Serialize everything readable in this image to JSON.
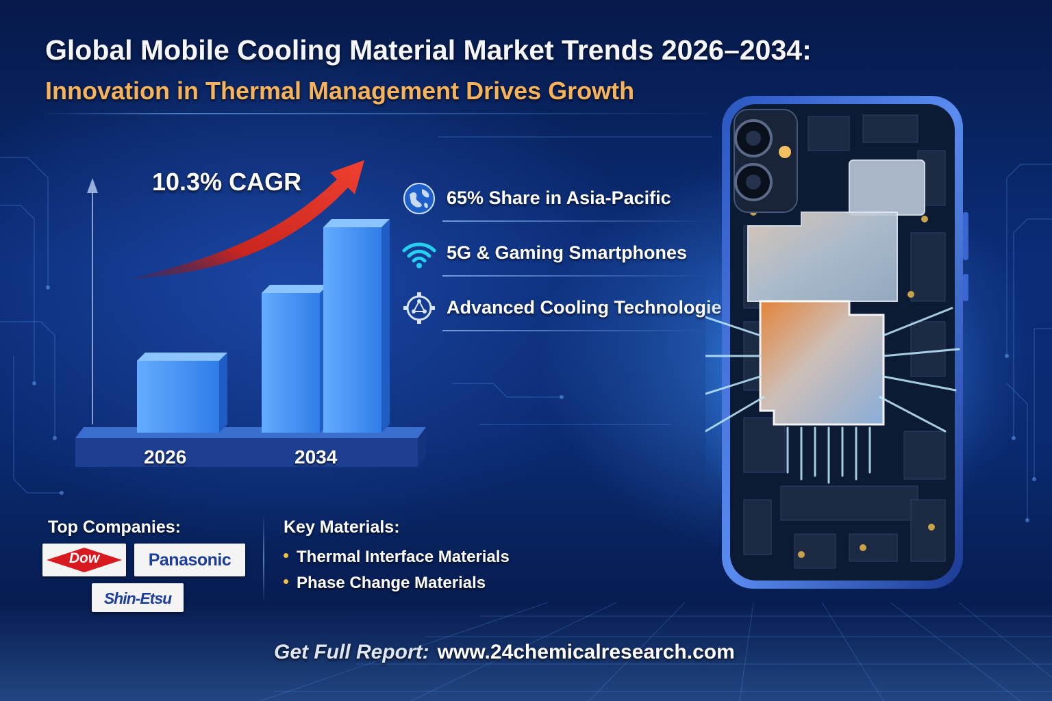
{
  "header": {
    "title": "Global Mobile Cooling Material Market Trends 2026–2034:",
    "subtitle": "Innovation in Thermal Management Drives Growth"
  },
  "chart": {
    "cagr_label": "10.3% CAGR",
    "year_labels": [
      "2026",
      "2034"
    ]
  },
  "chart_data": {
    "type": "bar",
    "title": "",
    "xlabel": "",
    "ylabel": "",
    "categories": [
      "2026",
      "",
      "2034"
    ],
    "values": [
      35,
      68,
      100
    ],
    "ylim": [
      0,
      110
    ],
    "annotation": "10.3% CAGR",
    "grid": false,
    "legend": "none"
  },
  "features": [
    {
      "icon": "globe-icon",
      "label": "65% Share in Asia-Pacific"
    },
    {
      "icon": "wifi-icon",
      "label": "5G & Gaming Smartphones"
    },
    {
      "icon": "gear-network-icon",
      "label": "Advanced Cooling Technologies"
    }
  ],
  "companies": {
    "heading": "Top Companies:",
    "logos": [
      "Dow",
      "Panasonic",
      "Shin-Etsu"
    ]
  },
  "materials": {
    "heading": "Key Materials:",
    "items": [
      "Thermal Interface Materials",
      "Phase Change Materials"
    ]
  },
  "footer": {
    "label": "Get Full Report:",
    "url": "www.24chemicalresearch.com"
  },
  "colors": {
    "accent_orange": "#f6b35b",
    "arrow_red": "#e0342a",
    "bar_blue": "#3a8ef0",
    "background_navy": "#0b2d78"
  }
}
